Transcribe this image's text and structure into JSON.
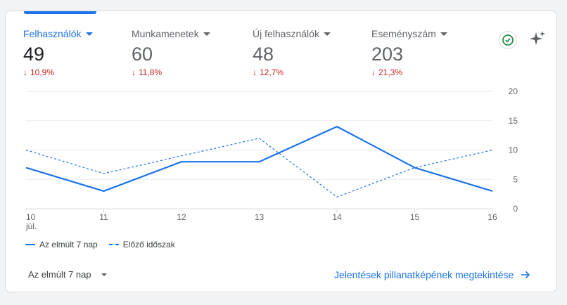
{
  "metrics": [
    {
      "label": "Felhasználók",
      "value": "49",
      "delta": "10,9%",
      "active": true
    },
    {
      "label": "Munkamenetek",
      "value": "60",
      "delta": "11,8%",
      "active": false
    },
    {
      "label": "Új felhasználók",
      "value": "48",
      "delta": "12,7%",
      "active": false
    },
    {
      "label": "Eseményszám",
      "value": "203",
      "delta": "21,3%",
      "active": false
    }
  ],
  "icons": {
    "delta": "arrow-down-icon",
    "check": "check-circle-icon",
    "sparkle": "sparkle-icon",
    "dropdown": "caret-down-icon",
    "link": "arrow-right-icon"
  },
  "colors": {
    "accent": "#1a73e8",
    "negative": "#c5221f"
  },
  "chart_data": {
    "type": "line",
    "x": [
      "10",
      "11",
      "12",
      "13",
      "14",
      "15",
      "16"
    ],
    "x_sublabel": "júl.",
    "ylim": [
      0,
      20
    ],
    "yticks": [
      0,
      5,
      10,
      15,
      20
    ],
    "y_axis_position": "right",
    "grid": true,
    "legend_position": "bottom-left",
    "series": [
      {
        "name": "Az elmúlt 7 nap",
        "style": "solid",
        "values": [
          7,
          3,
          8,
          8,
          14,
          7,
          3
        ]
      },
      {
        "name": "Előző időszak",
        "style": "dashed",
        "values": [
          10,
          6,
          9,
          12,
          2,
          7,
          10
        ]
      }
    ]
  },
  "footer": {
    "range_label": "Az elmúlt 7 nap",
    "link_label": "Jelentések pillanatképének megtekintése"
  }
}
